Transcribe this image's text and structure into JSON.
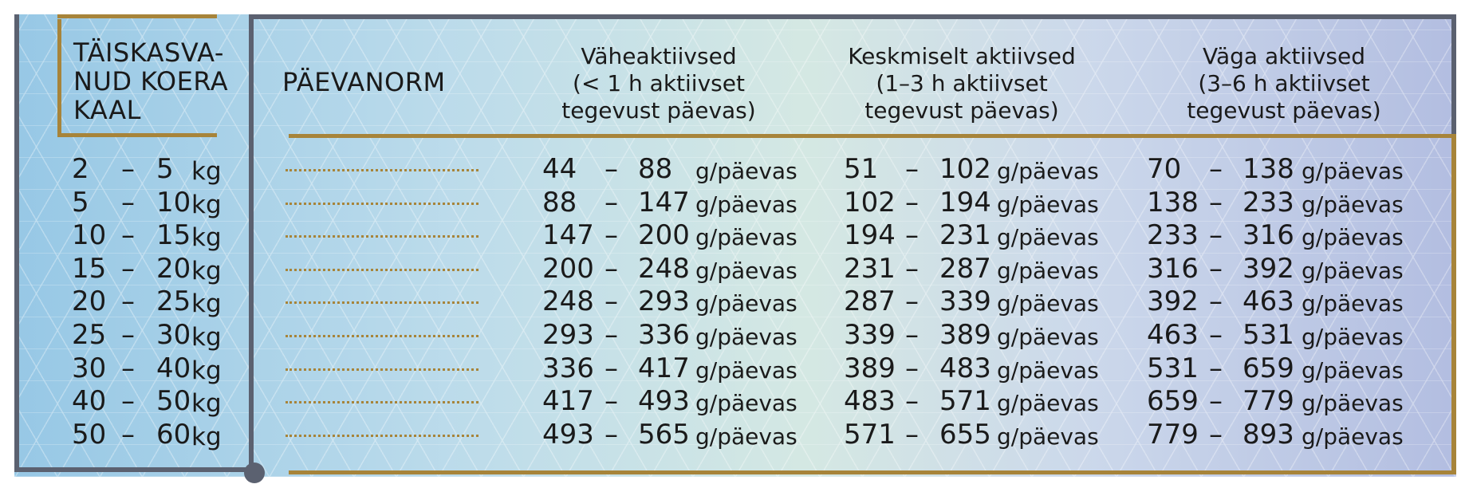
{
  "headers": {
    "weight": [
      "TÄISKASVA-",
      "NUD KOERA",
      "KAAL"
    ],
    "norm": "PÄEVANORM",
    "low": [
      "Väheaktiivsed",
      "(< 1 h aktiivset",
      "tegevust päevas)"
    ],
    "mid": [
      "Keskmiselt aktiivsed",
      "(1–3 h aktiivset",
      "tegevust päevas)"
    ],
    "high": [
      "Väga aktiivsed",
      "(3–6 h aktiivset",
      "tegevust päevas)"
    ]
  },
  "dash": "–",
  "kg_unit": "kg",
  "g_unit": "g/päevas",
  "rows": [
    {
      "w_from": "2",
      "w_to": "5",
      "low_from": "44",
      "low_to": "88",
      "mid_from": "51",
      "mid_to": "102",
      "high_from": "70",
      "high_to": "138"
    },
    {
      "w_from": "5",
      "w_to": "10",
      "low_from": "88",
      "low_to": "147",
      "mid_from": "102",
      "mid_to": "194",
      "high_from": "138",
      "high_to": "233"
    },
    {
      "w_from": "10",
      "w_to": "15",
      "low_from": "147",
      "low_to": "200",
      "mid_from": "194",
      "mid_to": "231",
      "high_from": "233",
      "high_to": "316"
    },
    {
      "w_from": "15",
      "w_to": "20",
      "low_from": "200",
      "low_to": "248",
      "mid_from": "231",
      "mid_to": "287",
      "high_from": "316",
      "high_to": "392"
    },
    {
      "w_from": "20",
      "w_to": "25",
      "low_from": "248",
      "low_to": "293",
      "mid_from": "287",
      "mid_to": "339",
      "high_from": "392",
      "high_to": "463"
    },
    {
      "w_from": "25",
      "w_to": "30",
      "low_from": "293",
      "low_to": "336",
      "mid_from": "339",
      "mid_to": "389",
      "high_from": "463",
      "high_to": "531"
    },
    {
      "w_from": "30",
      "w_to": "40",
      "low_from": "336",
      "low_to": "417",
      "mid_from": "389",
      "mid_to": "483",
      "high_from": "531",
      "high_to": "659"
    },
    {
      "w_from": "40",
      "w_to": "50",
      "low_from": "417",
      "low_to": "493",
      "mid_from": "483",
      "mid_to": "571",
      "high_from": "659",
      "high_to": "779"
    },
    {
      "w_from": "50",
      "w_to": "60",
      "low_from": "493",
      "low_to": "565",
      "mid_from": "571",
      "mid_to": "655",
      "high_from": "779",
      "high_to": "893"
    }
  ]
}
